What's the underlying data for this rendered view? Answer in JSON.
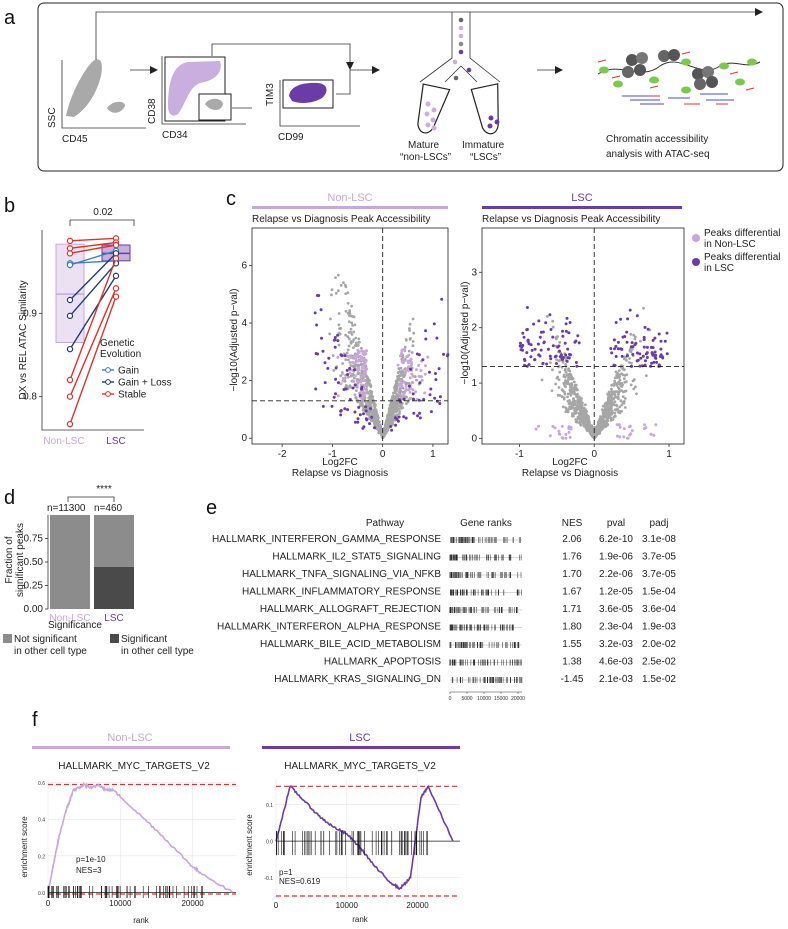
{
  "panel_a": {
    "label": "a",
    "gates": [
      {
        "y_axis": "SSC",
        "x_axis": "CD45"
      },
      {
        "y_axis": "CD38",
        "x_axis": "CD34"
      },
      {
        "y_axis": "TIM3",
        "x_axis": "CD99"
      }
    ],
    "mature_label": "Mature",
    "mature_sub": "“non-LSCs”",
    "immature_label": "Immature",
    "immature_sub": "“LSCs”",
    "analysis_line1": "Chromatin accessibility",
    "analysis_line2": "analysis with ATAC-seq"
  },
  "panel_b": {
    "label": "b",
    "ylabel": "DX vs REL ATAC Similarity",
    "pvalue": "0.02",
    "legend_title_1": "Genetic",
    "legend_title_2": "Evolution",
    "colors": {
      "gain": "#3a7dc9",
      "gain_loss": "#1f3f73",
      "stable": "#e0322c",
      "nonlsc": "#c9a6dc",
      "lsc": "#6b3ba8"
    },
    "chart_data": {
      "type": "scatter",
      "categories": [
        "Non-LSC",
        "LSC"
      ],
      "ylim": [
        0.76,
        1.0
      ],
      "yticks": [
        "0.8",
        "0.9"
      ],
      "legend": [
        "Gain",
        "Gain + Loss",
        "Stable"
      ],
      "pairs": [
        {
          "group": "Gain",
          "values": [
            0.96,
            0.963
          ]
        },
        {
          "group": "Gain",
          "values": [
            0.958,
            0.975
          ]
        },
        {
          "group": "Gain + Loss",
          "values": [
            0.897,
            0.96
          ]
        },
        {
          "group": "Gain + Loss",
          "values": [
            0.857,
            0.945
          ]
        },
        {
          "group": "Gain + Loss",
          "values": [
            0.916,
            0.972
          ]
        },
        {
          "group": "Stable",
          "values": [
            0.987,
            0.99
          ]
        },
        {
          "group": "Stable",
          "values": [
            0.978,
            0.985
          ]
        },
        {
          "group": "Stable",
          "values": [
            0.972,
            0.982
          ]
        },
        {
          "group": "Stable",
          "values": [
            0.8,
            0.93
          ]
        },
        {
          "group": "Stable",
          "values": [
            0.82,
            0.966
          ]
        },
        {
          "group": "Stable",
          "values": [
            0.767,
            0.92
          ]
        }
      ]
    }
  },
  "panel_c": {
    "label": "c",
    "left_header": "Non-LSC",
    "right_header": "LSC",
    "subtitle": "Relapse vs Diagnosis Peak Accessibility",
    "ylabel": "−log10(Adjusted p−val)",
    "xlabel_1": "Log2FC",
    "xlabel_2": "Relapse vs Diagnosis",
    "legend": [
      {
        "line1": "Peaks differential",
        "line2": "in Non-LSC",
        "color": "#c9a6dc"
      },
      {
        "line1": "Peaks differential",
        "line2": "in LSC",
        "color": "#6b3ba8"
      }
    ],
    "chart_data": [
      {
        "type": "scatter",
        "title": "Non-LSC",
        "xlim": [
          -2.6,
          1.3
        ],
        "ylim": [
          -0.2,
          7.3
        ],
        "xticks": [
          -2,
          -1,
          0,
          1
        ],
        "yticks": [
          0,
          2,
          4,
          6
        ],
        "threshold": 1.3
      },
      {
        "type": "scatter",
        "title": "LSC",
        "xlim": [
          -1.5,
          1.2
        ],
        "ylim": [
          -0.1,
          3.8
        ],
        "xticks": [
          -1,
          0,
          1
        ],
        "yticks": [
          0,
          1,
          2,
          3
        ],
        "threshold": 1.3
      }
    ]
  },
  "panel_d": {
    "label": "d",
    "ylabel_1": "Fraction of",
    "ylabel_2": "significant peaks",
    "n_left": "n=11300",
    "n_right": "n=460",
    "stars": "****",
    "legend_title": "Significance",
    "legend_ns_1": "Not significant",
    "legend_ns_2": "in other cell type",
    "legend_s_1": "Significant",
    "legend_s_2": "in other cell type",
    "chart_data": {
      "type": "bar",
      "categories": [
        "Non-LSC",
        "LSC"
      ],
      "ylim": [
        0,
        1.0
      ],
      "yticks": [
        "0.00",
        "0.25",
        "0.50",
        "0.75"
      ],
      "series": [
        {
          "name": "Not significant in other cell type",
          "values": [
            1.0,
            0.55
          ],
          "color": "#8c8c8c"
        },
        {
          "name": "Significant in other cell type",
          "values": [
            0.0,
            0.45
          ],
          "color": "#4a4a4a"
        }
      ]
    }
  },
  "panel_e": {
    "label": "e",
    "headers": [
      "Pathway",
      "Gene ranks",
      "NES",
      "pval",
      "padj"
    ],
    "rows": [
      {
        "pathway": "HALLMARK_INTERFERON_GAMMA_RESPONSE",
        "nes": "2.06",
        "pval": "6.2e-10",
        "padj": "3.1e-08"
      },
      {
        "pathway": "HALLMARK_IL2_STAT5_SIGNALING",
        "nes": "1.76",
        "pval": "1.9e-06",
        "padj": "3.7e-05"
      },
      {
        "pathway": "HALLMARK_TNFA_SIGNALING_VIA_NFKB",
        "nes": "1.70",
        "pval": "2.2e-06",
        "padj": "3.7e-05"
      },
      {
        "pathway": "HALLMARK_INFLAMMATORY_RESPONSE",
        "nes": "1.67",
        "pval": "1.2e-05",
        "padj": "1.5e-04"
      },
      {
        "pathway": "HALLMARK_ALLOGRAFT_REJECTION",
        "nes": "1.71",
        "pval": "3.6e-05",
        "padj": "3.6e-04"
      },
      {
        "pathway": "HALLMARK_INTERFERON_ALPHA_RESPONSE",
        "nes": "1.80",
        "pval": "2.3e-04",
        "padj": "1.9e-03"
      },
      {
        "pathway": "HALLMARK_BILE_ACID_METABOLISM",
        "nes": "1.55",
        "pval": "3.2e-03",
        "padj": "2.0e-02"
      },
      {
        "pathway": "HALLMARK_APOPTOSIS",
        "nes": "1.38",
        "pval": "4.6e-03",
        "padj": "2.5e-02"
      },
      {
        "pathway": "HALLMARK_KRAS_SIGNALING_DN",
        "nes": "-1.45",
        "pval": "2.1e-03",
        "padj": "1.5e-02"
      }
    ],
    "rank_axis_ticks": [
      "0",
      "5000",
      "10000",
      "15000",
      "20000"
    ]
  },
  "panel_f": {
    "label": "f",
    "left_header": "Non-LSC",
    "right_header": "LSC",
    "ylabel": "enrichment score",
    "xlabel": "rank",
    "chart_data": [
      {
        "type": "line",
        "title": "HALLMARK_MYC_TARGETS_V2",
        "xlim": [
          0,
          26000
        ],
        "ylim": [
          -0.02,
          0.62
        ],
        "xticks": [
          "0",
          "10000",
          "20000"
        ],
        "yticks": [
          "0.0",
          "0.2",
          "0.4",
          "0.6"
        ],
        "p": "p=1e-10",
        "nes": "NES=3",
        "x": [
          0,
          500,
          1000,
          1500,
          2500,
          3000,
          3500,
          4200,
          5000,
          6000,
          7000,
          8000,
          9000,
          12000,
          15000,
          18000,
          20000,
          21000,
          25500
        ],
        "y": [
          0.0,
          0.1,
          0.2,
          0.3,
          0.45,
          0.5,
          0.56,
          0.57,
          0.59,
          0.57,
          0.59,
          0.56,
          0.56,
          0.45,
          0.34,
          0.22,
          0.14,
          0.11,
          0.0
        ]
      },
      {
        "type": "line",
        "title": "HALLMARK_MYC_TARGETS_V2",
        "xlim": [
          0,
          26000
        ],
        "ylim": [
          -0.15,
          0.17
        ],
        "xticks": [
          "0",
          "10000",
          "20000"
        ],
        "yticks": [
          "-0.1",
          "0.0",
          "0.1"
        ],
        "p": "p=1",
        "nes": "NES=0.619",
        "x": [
          0,
          2000,
          4000,
          6000,
          8000,
          10000,
          12000,
          14000,
          16000,
          17500,
          19000,
          20500,
          21500,
          25000
        ],
        "y": [
          0.0,
          0.15,
          0.11,
          0.07,
          0.04,
          0.02,
          -0.02,
          -0.07,
          -0.11,
          -0.13,
          -0.1,
          0.12,
          0.15,
          0.0
        ]
      }
    ]
  }
}
